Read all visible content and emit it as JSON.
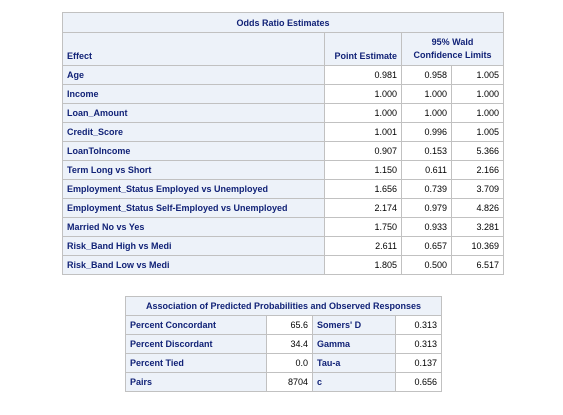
{
  "odds_ratio": {
    "title": "Odds Ratio Estimates",
    "headers": {
      "effect": "Effect",
      "point_estimate": "Point Estimate",
      "ci_group_line1": "95% Wald",
      "ci_group_line2": "Confidence Limits"
    },
    "rows": [
      {
        "effect": "Age",
        "estimate": "0.981",
        "lower": "0.958",
        "upper": "1.005"
      },
      {
        "effect": "Income",
        "estimate": "1.000",
        "lower": "1.000",
        "upper": "1.000"
      },
      {
        "effect": "Loan_Amount",
        "estimate": "1.000",
        "lower": "1.000",
        "upper": "1.000"
      },
      {
        "effect": "Credit_Score",
        "estimate": "1.001",
        "lower": "0.996",
        "upper": "1.005"
      },
      {
        "effect": "LoanToIncome",
        "estimate": "0.907",
        "lower": "0.153",
        "upper": "5.366"
      },
      {
        "effect": "Term Long vs Short",
        "estimate": "1.150",
        "lower": "0.611",
        "upper": "2.166"
      },
      {
        "effect": "Employment_Status Employed vs Unemployed",
        "estimate": "1.656",
        "lower": "0.739",
        "upper": "3.709"
      },
      {
        "effect": "Employment_Status Self-Employed vs Unemployed",
        "estimate": "2.174",
        "lower": "0.979",
        "upper": "4.826"
      },
      {
        "effect": "Married No vs Yes",
        "estimate": "1.750",
        "lower": "0.933",
        "upper": "3.281"
      },
      {
        "effect": "Risk_Band High vs Medi",
        "estimate": "2.611",
        "lower": "0.657",
        "upper": "10.369"
      },
      {
        "effect": "Risk_Band Low vs Medi",
        "estimate": "1.805",
        "lower": "0.500",
        "upper": "6.517"
      }
    ]
  },
  "association": {
    "title": "Association of Predicted Probabilities and Observed Responses",
    "rows": [
      {
        "label1": "Percent Concordant",
        "value1": "65.6",
        "label2": "Somers' D",
        "value2": "0.313"
      },
      {
        "label1": "Percent Discordant",
        "value1": "34.4",
        "label2": "Gamma",
        "value2": "0.313"
      },
      {
        "label1": "Percent Tied",
        "value1": "0.0",
        "label2": "Tau-a",
        "value2": "0.137"
      },
      {
        "label1": "Pairs",
        "value1": "8704",
        "label2": "c",
        "value2": "0.656"
      }
    ]
  },
  "colors": {
    "header_bg": "#edf2f9",
    "header_text": "#112277",
    "border": "#c1c1c1"
  }
}
